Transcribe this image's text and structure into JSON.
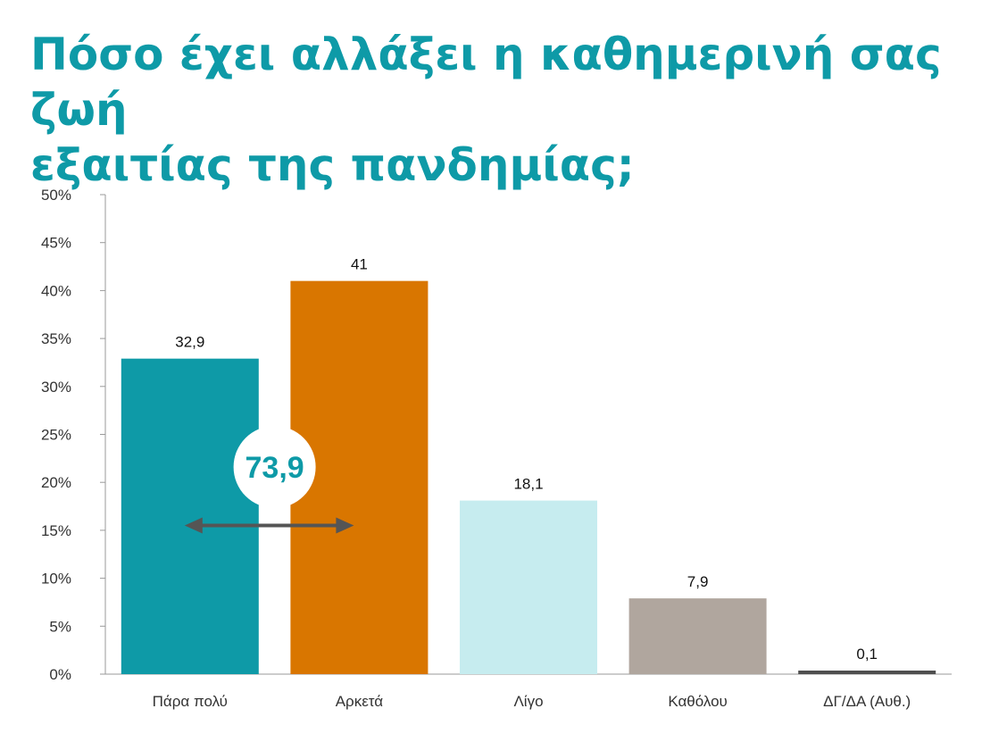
{
  "title": {
    "line1": "Πόσο έχει αλλάξει η καθημερινή σας ζωή",
    "line2": "εξαιτίας της πανδημίας;"
  },
  "chart_data": {
    "type": "bar",
    "categories": [
      "Πάρα πολύ",
      "Αρκετά",
      "Λίγο",
      "Καθόλου",
      "ΔΓ/ΔΑ (Αυθ.)"
    ],
    "values": [
      32.9,
      41,
      18.1,
      7.9,
      0.1
    ],
    "value_labels": [
      "32,9",
      "41",
      "18,1",
      "7,9",
      "0,1"
    ],
    "colors": [
      "#0e9aa7",
      "#d97600",
      "#c6ecef",
      "#b0a69e",
      "#4f4f4f"
    ],
    "ylim": [
      0,
      50
    ],
    "yticks": [
      0,
      5,
      10,
      15,
      20,
      25,
      30,
      35,
      40,
      45,
      50
    ],
    "ytick_labels": [
      "0%",
      "5%",
      "10%",
      "15%",
      "20%",
      "25%",
      "30%",
      "35%",
      "40%",
      "45%",
      "50%"
    ],
    "grid": false,
    "annotation": {
      "label": "73,9",
      "spans": [
        "Πάρα πολύ",
        "Αρκετά"
      ],
      "color": "#0e9aa7",
      "arrow_color": "#555555"
    }
  }
}
